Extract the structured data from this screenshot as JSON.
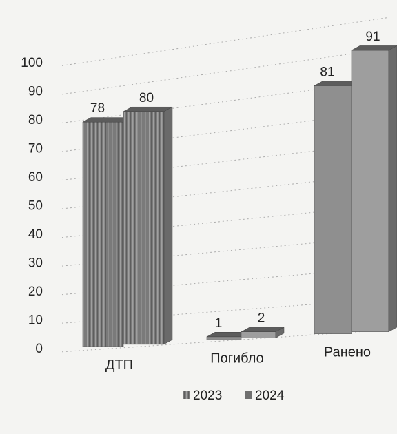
{
  "chart_data": {
    "type": "bar",
    "categories": [
      "ДТП",
      "Погибло",
      "Ранено"
    ],
    "series": [
      {
        "name": "2023",
        "values": [
          78,
          1,
          81
        ],
        "color": "#8f8f8f"
      },
      {
        "name": "2024",
        "values": [
          80,
          2,
          91
        ],
        "color": "#9e9e9e"
      }
    ],
    "data_labels": [
      "78",
      "80",
      "1",
      "2",
      "81",
      "91"
    ],
    "ylim": [
      0,
      100
    ],
    "yticks": [
      "0",
      "10",
      "20",
      "30",
      "40",
      "50",
      "60",
      "70",
      "80",
      "90",
      "100"
    ],
    "grid": true,
    "legend_position": "bottom",
    "legend": [
      "2023",
      "2024"
    ],
    "style": "3d-column"
  }
}
